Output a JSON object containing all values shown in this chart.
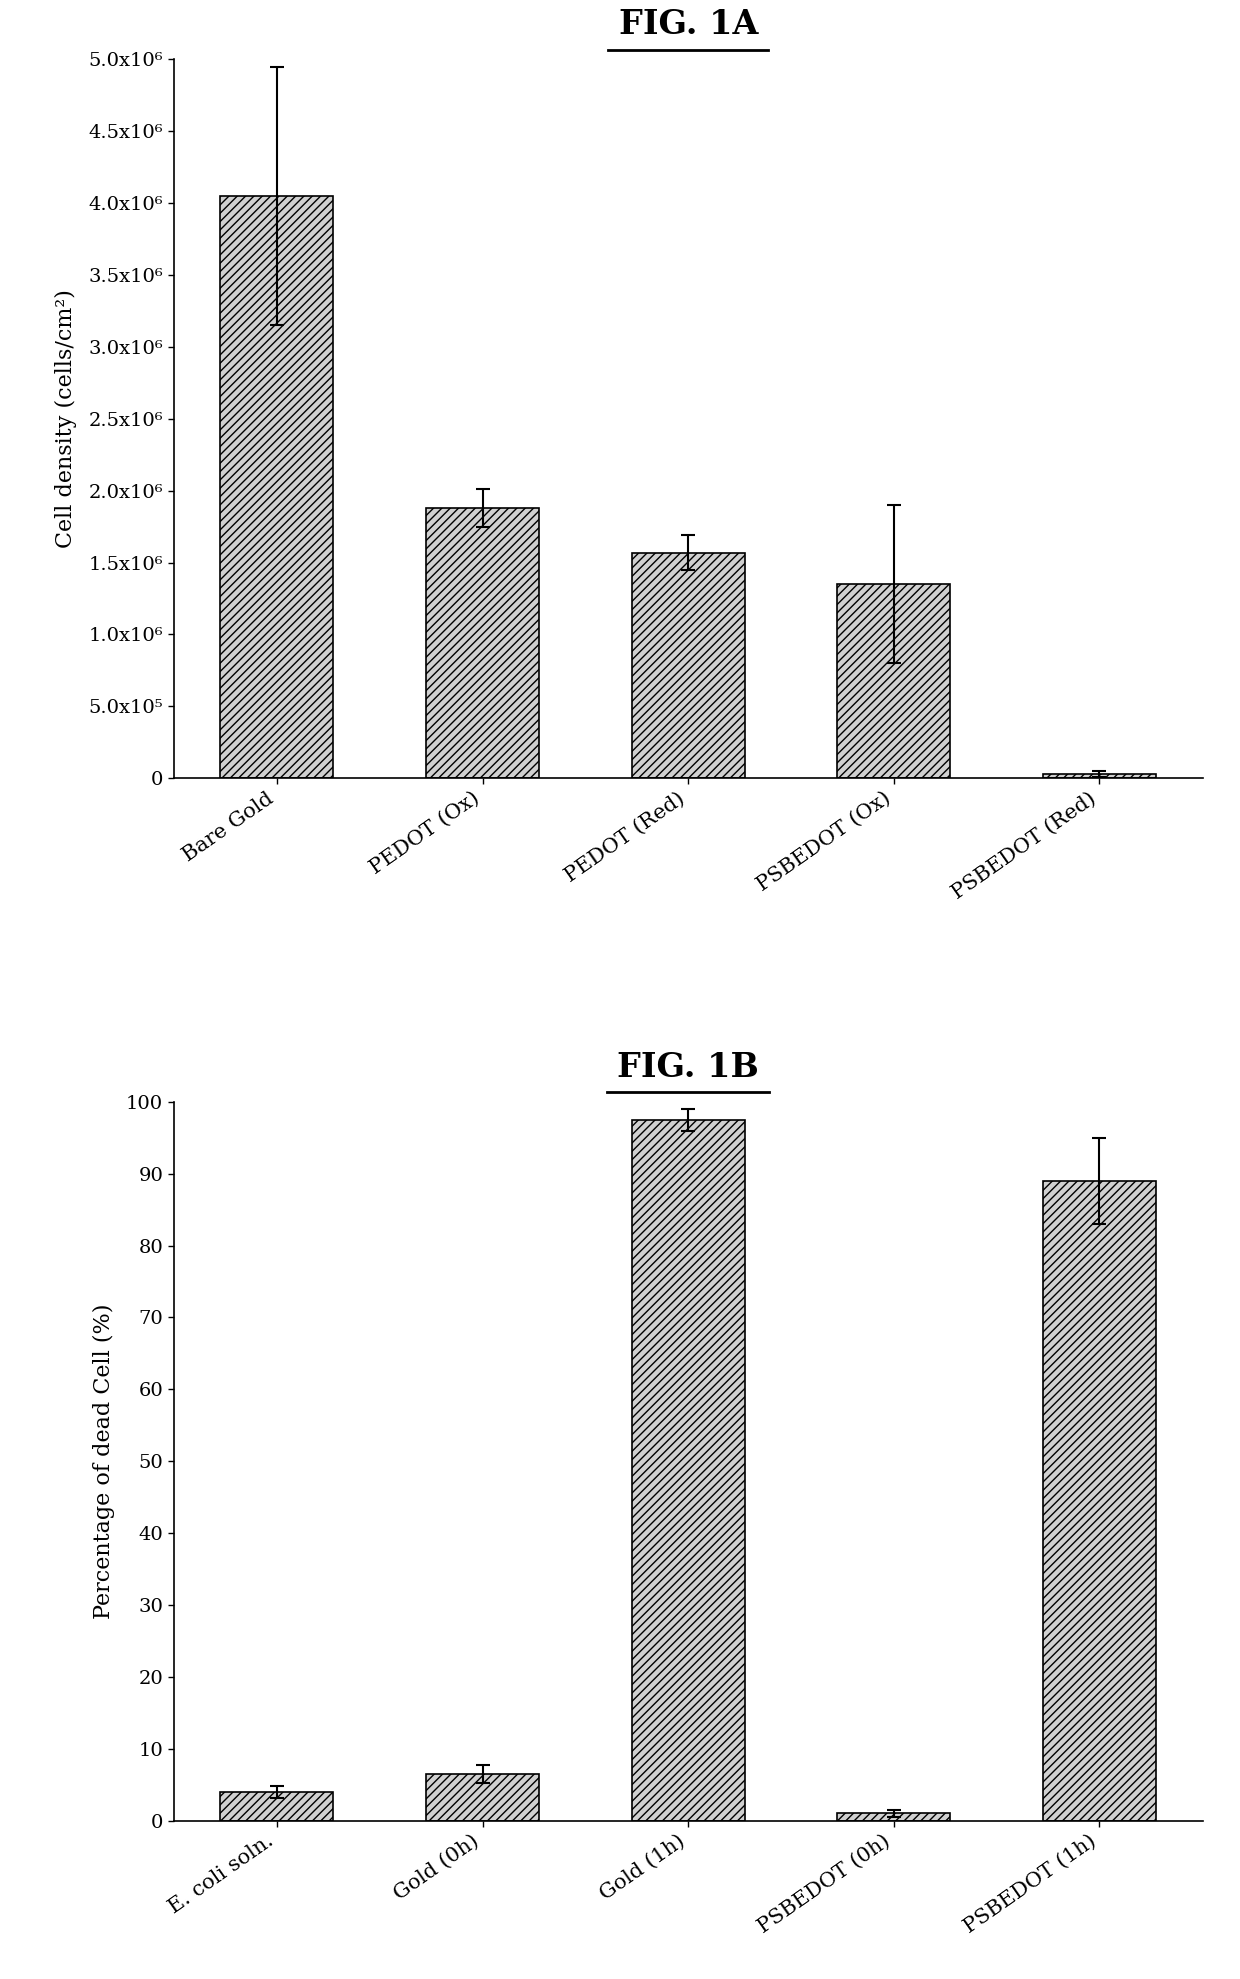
{
  "fig1a": {
    "title": "FIG. 1A",
    "categories": [
      "Bare Gold",
      "PEDOT (Ox)",
      "PEDOT (Red)",
      "PSBEDOT (Ox)",
      "PSBEDOT (Red)"
    ],
    "values": [
      4050000,
      1880000,
      1570000,
      1350000,
      30000
    ],
    "errors": [
      900000,
      130000,
      120000,
      550000,
      20000
    ],
    "ylabel": "Cell density (cells/cm²)",
    "ylim": [
      0,
      5000000
    ],
    "yticks": [
      0,
      500000,
      1000000,
      1500000,
      2000000,
      2500000,
      3000000,
      3500000,
      4000000,
      4500000,
      5000000
    ],
    "ytick_labels": [
      "0",
      "5.0x10⁵",
      "1.0x10⁶",
      "1.5x10⁶",
      "2.0x10⁶",
      "2.5x10⁶",
      "3.0x10⁶",
      "3.5x10⁶",
      "4.0x10⁶",
      "4.5x10⁶",
      "5.0x10⁶"
    ]
  },
  "fig1b": {
    "title": "FIG. 1B",
    "categories": [
      "E. coli soln.",
      "Gold (0h)",
      "Gold (1h)",
      "PSBEDOT (0h)",
      "PSBEDOT (1h)"
    ],
    "values": [
      4.0,
      6.5,
      97.5,
      1.0,
      89.0
    ],
    "errors": [
      0.8,
      1.2,
      1.5,
      0.5,
      6.0
    ],
    "ylabel": "Percentage of dead Cell (%)",
    "ylim": [
      0,
      100
    ],
    "yticks": [
      0,
      10,
      20,
      30,
      40,
      50,
      60,
      70,
      80,
      90,
      100
    ],
    "ytick_labels": [
      "0",
      "10",
      "20",
      "30",
      "40",
      "50",
      "60",
      "70",
      "80",
      "90",
      "100"
    ]
  },
  "hatch_pattern": "////",
  "bar_color": "#d0d0d0",
  "bar_edgecolor": "#000000",
  "error_color": "#000000",
  "background_color": "#ffffff",
  "title_fontsize": 24,
  "label_fontsize": 16,
  "tick_fontsize": 14,
  "xtick_fontsize": 15
}
